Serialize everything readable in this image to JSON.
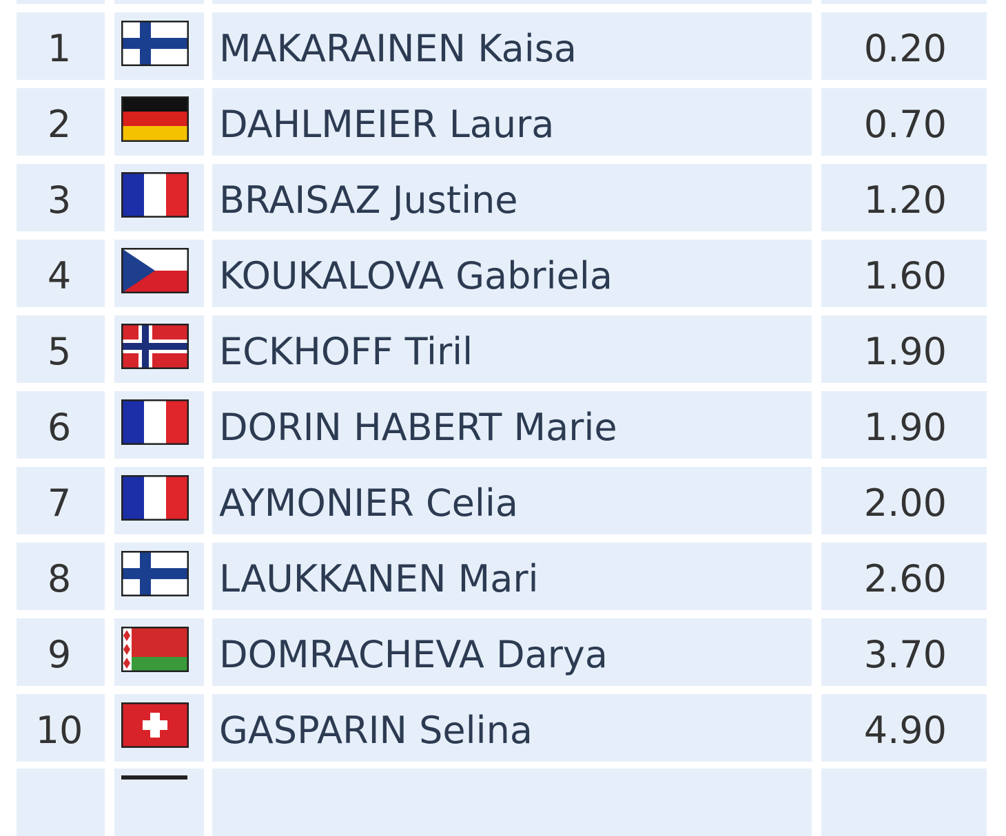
{
  "table": {
    "rows": [
      [
        "1",
        "MAKARAINEN Kaisa",
        "0.20"
      ],
      [
        "2",
        "DAHLMEIER Laura",
        "0.70"
      ],
      [
        "3",
        "BRAISAZ Justine",
        "1.20"
      ],
      [
        "4",
        "KOUKALOVA Gabriela",
        "1.60"
      ],
      [
        "5",
        "ECKHOFF Tiril",
        "1.90"
      ],
      [
        "6",
        "DORIN HABERT Marie",
        "1.90"
      ],
      [
        "7",
        "AYMONIER Celia",
        "2.00"
      ],
      [
        "8",
        "LAUKKANEN Mari",
        "2.60"
      ],
      [
        "9",
        "DOMRACHEVA Darya",
        "3.70"
      ],
      [
        "10",
        "GASPARIN Selina",
        "4.90"
      ]
    ]
  }
}
